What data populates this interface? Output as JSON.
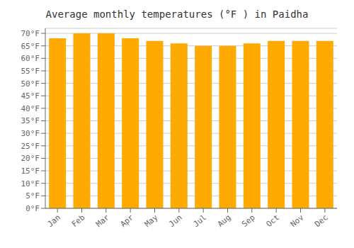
{
  "chart_data": {
    "type": "bar",
    "title": "Average monthly temperatures (°F ) in Paidha",
    "categories": [
      "Jan",
      "Feb",
      "Mar",
      "Apr",
      "May",
      "Jun",
      "Jul",
      "Aug",
      "Sep",
      "Oct",
      "Nov",
      "Dec"
    ],
    "values": [
      68,
      70,
      70,
      68,
      67,
      66,
      65,
      65,
      66,
      67,
      67,
      67
    ],
    "color": "#FFAA00",
    "ylim": [
      0,
      72
    ],
    "yticks": [
      {
        "value": 0,
        "label": "0°F"
      },
      {
        "value": 5,
        "label": "5°F"
      },
      {
        "value": 10,
        "label": "10°F"
      },
      {
        "value": 15,
        "label": "15°F"
      },
      {
        "value": 20,
        "label": "20°F"
      },
      {
        "value": 25,
        "label": "25°F"
      },
      {
        "value": 30,
        "label": "30°F"
      },
      {
        "value": 35,
        "label": "35°F"
      },
      {
        "value": 40,
        "label": "40°F"
      },
      {
        "value": 45,
        "label": "45°F"
      },
      {
        "value": 50,
        "label": "50°F"
      },
      {
        "value": 55,
        "label": "55°F"
      },
      {
        "value": 60,
        "label": "60°F"
      },
      {
        "value": 65,
        "label": "65°F"
      },
      {
        "value": 70,
        "label": "70°F"
      }
    ],
    "grid": true
  }
}
